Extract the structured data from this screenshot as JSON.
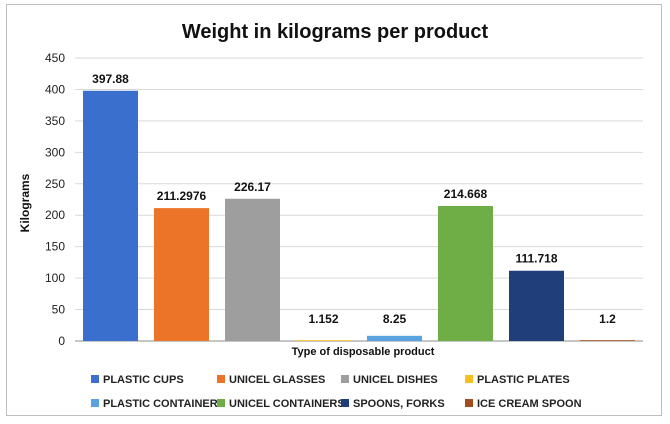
{
  "chart_data": {
    "type": "bar",
    "title": "Weight in kilograms per product",
    "xlabel": "Type of disposable product",
    "ylabel": "Kilograms",
    "ylim": [
      0,
      450
    ],
    "yticks": [
      0,
      50,
      100,
      150,
      200,
      250,
      300,
      350,
      400,
      450
    ],
    "grid": true,
    "legend_position": "bottom",
    "categories": [
      "PLASTIC CUPS",
      "UNICEL GLASSES",
      "UNICEL DISHES",
      "PLASTIC PLATES",
      "PLASTIC CONTAINERS",
      "UNICEL CONTAINERS",
      "SPOONS, FORKS",
      "ICE CREAM SPOON"
    ],
    "values": [
      397.88,
      211.2976,
      226.17,
      1.152,
      8.25,
      214.668,
      111.718,
      1.2
    ],
    "value_labels": [
      "397.88",
      "211.2976",
      "226.17",
      "1.152",
      "8.25",
      "214.668",
      "111.718",
      "1.2"
    ],
    "colors": [
      "#3a6fcd",
      "#ec7428",
      "#9e9e9e",
      "#f7c01d",
      "#5ba3e0",
      "#6fae46",
      "#203f7a",
      "#a24d1e"
    ]
  }
}
